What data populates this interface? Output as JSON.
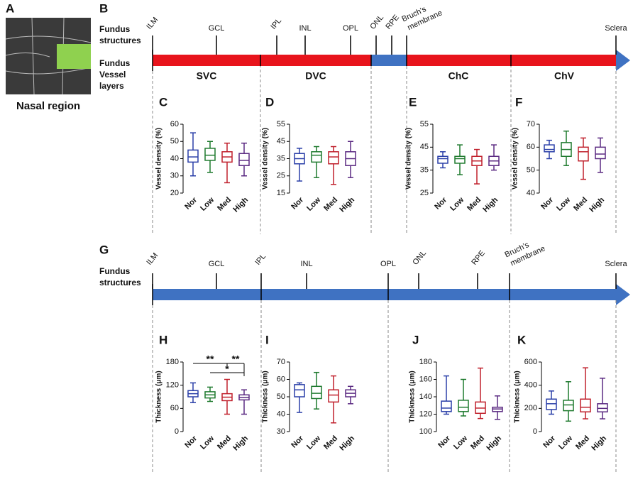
{
  "image": {
    "panel": "A",
    "caption": "Nasal region"
  },
  "top": {
    "panel": "B",
    "structures_title": [
      "Fundus",
      "structures"
    ],
    "layers_title": [
      "Fundus",
      "Vessel",
      "layers"
    ],
    "structures": [
      [
        "ILM"
      ],
      [
        "GCL"
      ],
      [
        "IPL"
      ],
      [
        "INL"
      ],
      [
        "OPL"
      ],
      [
        "ONL"
      ],
      [
        "RPE"
      ],
      [
        "Bruch’s",
        "membrane"
      ],
      [
        "Sclera"
      ]
    ],
    "layers": [
      "SVC",
      "DVC",
      "ChC",
      "ChV"
    ]
  },
  "bottom": {
    "panel": "G",
    "structures_title": [
      "Fundus",
      "structures"
    ],
    "structures": [
      [
        "ILM"
      ],
      [
        "GCL"
      ],
      [
        "IPL"
      ],
      [
        "INL"
      ],
      [
        "OPL"
      ],
      [
        "ONL"
      ],
      [
        "RPE"
      ],
      [
        "Bruch’s",
        "membrane"
      ],
      [
        "Sclera"
      ]
    ]
  },
  "chart_data": [
    {
      "type": "box",
      "panel": "C",
      "y_label": "Vessel density (%)",
      "ylim": [
        20,
        60
      ],
      "yticks": [
        20,
        30,
        40,
        50,
        60
      ],
      "categories": [
        "Nor",
        "Low",
        "Med",
        "High"
      ],
      "colors": [
        "#2a3fa8",
        "#1e7a2e",
        "#c0202c",
        "#5b2a82"
      ],
      "boxes": [
        {
          "min": 30,
          "q1": 38,
          "median": 41,
          "q3": 45,
          "max": 55
        },
        {
          "min": 32,
          "q1": 39,
          "median": 42,
          "q3": 46,
          "max": 50
        },
        {
          "min": 26,
          "q1": 38,
          "median": 41,
          "q3": 44,
          "max": 49
        },
        {
          "min": 30,
          "q1": 36,
          "median": 39,
          "q3": 43,
          "max": 49
        }
      ]
    },
    {
      "type": "box",
      "panel": "D",
      "y_label": "Vessel density (%)",
      "ylim": [
        15,
        55
      ],
      "yticks": [
        15,
        25,
        35,
        45,
        55
      ],
      "categories": [
        "Nor",
        "Low",
        "Med",
        "High"
      ],
      "colors": [
        "#2a3fa8",
        "#1e7a2e",
        "#c0202c",
        "#5b2a82"
      ],
      "boxes": [
        {
          "min": 22,
          "q1": 32,
          "median": 35,
          "q3": 38,
          "max": 41
        },
        {
          "min": 24,
          "q1": 33,
          "median": 37,
          "q3": 39,
          "max": 42
        },
        {
          "min": 20,
          "q1": 32,
          "median": 36,
          "q3": 39,
          "max": 42
        },
        {
          "min": 24,
          "q1": 31,
          "median": 35,
          "q3": 39,
          "max": 45
        }
      ]
    },
    {
      "type": "box",
      "panel": "E",
      "y_label": "Vessel density (%)",
      "ylim": [
        25,
        55
      ],
      "yticks": [
        25,
        35,
        45,
        55
      ],
      "categories": [
        "Nor",
        "Low",
        "Med",
        "High"
      ],
      "colors": [
        "#2a3fa8",
        "#1e7a2e",
        "#c0202c",
        "#5b2a82"
      ],
      "boxes": [
        {
          "min": 36,
          "q1": 38,
          "median": 40,
          "q3": 41,
          "max": 43
        },
        {
          "min": 33,
          "q1": 38,
          "median": 40,
          "q3": 41,
          "max": 46
        },
        {
          "min": 29,
          "q1": 37,
          "median": 39,
          "q3": 41,
          "max": 44
        },
        {
          "min": 35,
          "q1": 37,
          "median": 39,
          "q3": 41,
          "max": 46
        }
      ]
    },
    {
      "type": "box",
      "panel": "F",
      "y_label": "Vessel density (%)",
      "ylim": [
        40,
        70
      ],
      "yticks": [
        40,
        50,
        60,
        70
      ],
      "categories": [
        "Nor",
        "Low",
        "Med",
        "High"
      ],
      "colors": [
        "#2a3fa8",
        "#1e7a2e",
        "#c0202c",
        "#5b2a82"
      ],
      "boxes": [
        {
          "min": 55,
          "q1": 58,
          "median": 59,
          "q3": 61,
          "max": 63
        },
        {
          "min": 52,
          "q1": 56,
          "median": 59,
          "q3": 62,
          "max": 67
        },
        {
          "min": 46,
          "q1": 54,
          "median": 58,
          "q3": 60,
          "max": 64
        },
        {
          "min": 49,
          "q1": 55,
          "median": 57,
          "q3": 60,
          "max": 64
        }
      ]
    },
    {
      "type": "box",
      "panel": "H",
      "y_label": "Thickness (μm)",
      "ylim": [
        0,
        180
      ],
      "yticks": [
        0,
        60,
        120,
        180
      ],
      "categories": [
        "Nor",
        "Low",
        "Med",
        "High"
      ],
      "colors": [
        "#2a3fa8",
        "#1e7a2e",
        "#c0202c",
        "#5b2a82"
      ],
      "boxes": [
        {
          "min": 75,
          "q1": 90,
          "median": 98,
          "q3": 106,
          "max": 126
        },
        {
          "min": 78,
          "q1": 87,
          "median": 95,
          "q3": 103,
          "max": 115
        },
        {
          "min": 45,
          "q1": 80,
          "median": 89,
          "q3": 98,
          "max": 135
        },
        {
          "min": 45,
          "q1": 82,
          "median": 88,
          "q3": 95,
          "max": 108
        }
      ],
      "annotations": [
        "**",
        "**",
        "*"
      ]
    },
    {
      "type": "box",
      "panel": "I",
      "y_label": "Thickness (μm)",
      "ylim": [
        30,
        70
      ],
      "yticks": [
        30,
        40,
        50,
        60,
        70
      ],
      "categories": [
        "Nor",
        "Low",
        "Med",
        "High"
      ],
      "colors": [
        "#2a3fa8",
        "#1e7a2e",
        "#c0202c",
        "#5b2a82"
      ],
      "boxes": [
        {
          "min": 41,
          "q1": 50,
          "median": 54,
          "q3": 57,
          "max": 58
        },
        {
          "min": 43,
          "q1": 49,
          "median": 52,
          "q3": 56,
          "max": 64
        },
        {
          "min": 35,
          "q1": 47,
          "median": 51,
          "q3": 54,
          "max": 62
        },
        {
          "min": 46,
          "q1": 50,
          "median": 52,
          "q3": 54,
          "max": 56
        }
      ]
    },
    {
      "type": "box",
      "panel": "J",
      "y_label": "Thickness (μm)",
      "ylim": [
        100,
        180
      ],
      "yticks": [
        100,
        120,
        140,
        160,
        180
      ],
      "categories": [
        "Nor",
        "Low",
        "Med",
        "High"
      ],
      "colors": [
        "#2a3fa8",
        "#1e7a2e",
        "#c0202c",
        "#5b2a82"
      ],
      "boxes": [
        {
          "min": 120,
          "q1": 123,
          "median": 127,
          "q3": 135,
          "max": 164
        },
        {
          "min": 118,
          "q1": 123,
          "median": 128,
          "q3": 136,
          "max": 160
        },
        {
          "min": 115,
          "q1": 121,
          "median": 127,
          "q3": 134,
          "max": 173
        },
        {
          "min": 114,
          "q1": 123,
          "median": 126,
          "q3": 128,
          "max": 141
        }
      ]
    },
    {
      "type": "box",
      "panel": "K",
      "y_label": "Thickness (μm)",
      "ylim": [
        0,
        600
      ],
      "yticks": [
        0,
        200,
        400,
        600
      ],
      "categories": [
        "Nor",
        "Low",
        "Med",
        "High"
      ],
      "colors": [
        "#2a3fa8",
        "#1e7a2e",
        "#c0202c",
        "#5b2a82"
      ],
      "boxes": [
        {
          "min": 150,
          "q1": 190,
          "median": 240,
          "q3": 280,
          "max": 350
        },
        {
          "min": 90,
          "q1": 180,
          "median": 230,
          "q3": 270,
          "max": 430
        },
        {
          "min": 110,
          "q1": 170,
          "median": 210,
          "q3": 280,
          "max": 550
        },
        {
          "min": 110,
          "q1": 170,
          "median": 200,
          "q3": 240,
          "max": 460
        }
      ]
    }
  ]
}
